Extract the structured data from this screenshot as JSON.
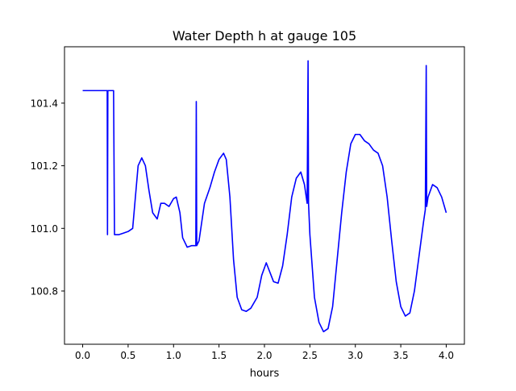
{
  "chart_data": {
    "type": "line",
    "title": "Water Depth h at gauge 105",
    "xlabel": "hours",
    "ylabel": "",
    "xlim": [
      -0.2,
      4.2
    ],
    "ylim": [
      100.63,
      101.58
    ],
    "x_ticks": [
      0.0,
      0.5,
      1.0,
      1.5,
      2.0,
      2.5,
      3.0,
      3.5,
      4.0
    ],
    "x_tick_labels": [
      "0.0",
      "0.5",
      "1.0",
      "1.5",
      "2.0",
      "2.5",
      "3.0",
      "3.5",
      "4.0"
    ],
    "y_ticks": [
      100.8,
      101.0,
      101.2,
      101.4
    ],
    "y_tick_labels": [
      "100.8",
      "101.0",
      "101.2",
      "101.4"
    ],
    "grid": false,
    "legend": "none",
    "series": [
      {
        "color": "#0000ff",
        "points": [
          [
            0.0,
            101.44
          ],
          [
            0.27,
            101.44
          ],
          [
            0.273,
            100.98
          ],
          [
            0.277,
            101.44
          ],
          [
            0.34,
            101.44
          ],
          [
            0.35,
            100.98
          ],
          [
            0.4,
            100.98
          ],
          [
            0.45,
            100.985
          ],
          [
            0.5,
            100.99
          ],
          [
            0.55,
            101.0
          ],
          [
            0.58,
            101.1
          ],
          [
            0.61,
            101.2
          ],
          [
            0.65,
            101.225
          ],
          [
            0.69,
            101.2
          ],
          [
            0.73,
            101.12
          ],
          [
            0.77,
            101.05
          ],
          [
            0.82,
            101.03
          ],
          [
            0.86,
            101.08
          ],
          [
            0.9,
            101.08
          ],
          [
            0.95,
            101.07
          ],
          [
            1.0,
            101.095
          ],
          [
            1.03,
            101.1
          ],
          [
            1.07,
            101.05
          ],
          [
            1.1,
            100.97
          ],
          [
            1.15,
            100.94
          ],
          [
            1.2,
            100.945
          ],
          [
            1.245,
            100.945
          ],
          [
            1.25,
            101.405
          ],
          [
            1.255,
            100.945
          ],
          [
            1.28,
            100.96
          ],
          [
            1.34,
            101.08
          ],
          [
            1.4,
            101.13
          ],
          [
            1.45,
            101.18
          ],
          [
            1.5,
            101.22
          ],
          [
            1.55,
            101.24
          ],
          [
            1.58,
            101.22
          ],
          [
            1.62,
            101.1
          ],
          [
            1.66,
            100.9
          ],
          [
            1.7,
            100.78
          ],
          [
            1.75,
            100.74
          ],
          [
            1.8,
            100.735
          ],
          [
            1.85,
            100.745
          ],
          [
            1.92,
            100.78
          ],
          [
            1.97,
            100.85
          ],
          [
            2.02,
            100.89
          ],
          [
            2.06,
            100.86
          ],
          [
            2.1,
            100.83
          ],
          [
            2.15,
            100.825
          ],
          [
            2.2,
            100.88
          ],
          [
            2.25,
            100.98
          ],
          [
            2.3,
            101.1
          ],
          [
            2.35,
            101.16
          ],
          [
            2.4,
            101.18
          ],
          [
            2.44,
            101.14
          ],
          [
            2.47,
            101.08
          ],
          [
            2.48,
            101.535
          ],
          [
            2.485,
            101.08
          ],
          [
            2.5,
            100.98
          ],
          [
            2.55,
            100.78
          ],
          [
            2.6,
            100.7
          ],
          [
            2.65,
            100.67
          ],
          [
            2.7,
            100.68
          ],
          [
            2.75,
            100.75
          ],
          [
            2.8,
            100.9
          ],
          [
            2.85,
            101.05
          ],
          [
            2.9,
            101.18
          ],
          [
            2.95,
            101.27
          ],
          [
            3.0,
            101.3
          ],
          [
            3.05,
            101.3
          ],
          [
            3.1,
            101.28
          ],
          [
            3.15,
            101.27
          ],
          [
            3.2,
            101.25
          ],
          [
            3.25,
            101.24
          ],
          [
            3.3,
            101.2
          ],
          [
            3.35,
            101.1
          ],
          [
            3.4,
            100.96
          ],
          [
            3.45,
            100.83
          ],
          [
            3.5,
            100.75
          ],
          [
            3.55,
            100.72
          ],
          [
            3.6,
            100.73
          ],
          [
            3.65,
            100.8
          ],
          [
            3.7,
            100.91
          ],
          [
            3.75,
            101.02
          ],
          [
            3.77,
            101.06
          ],
          [
            3.78,
            101.52
          ],
          [
            3.785,
            101.07
          ],
          [
            3.8,
            101.1
          ],
          [
            3.85,
            101.14
          ],
          [
            3.9,
            101.13
          ],
          [
            3.95,
            101.1
          ],
          [
            4.0,
            101.05
          ]
        ]
      }
    ]
  }
}
